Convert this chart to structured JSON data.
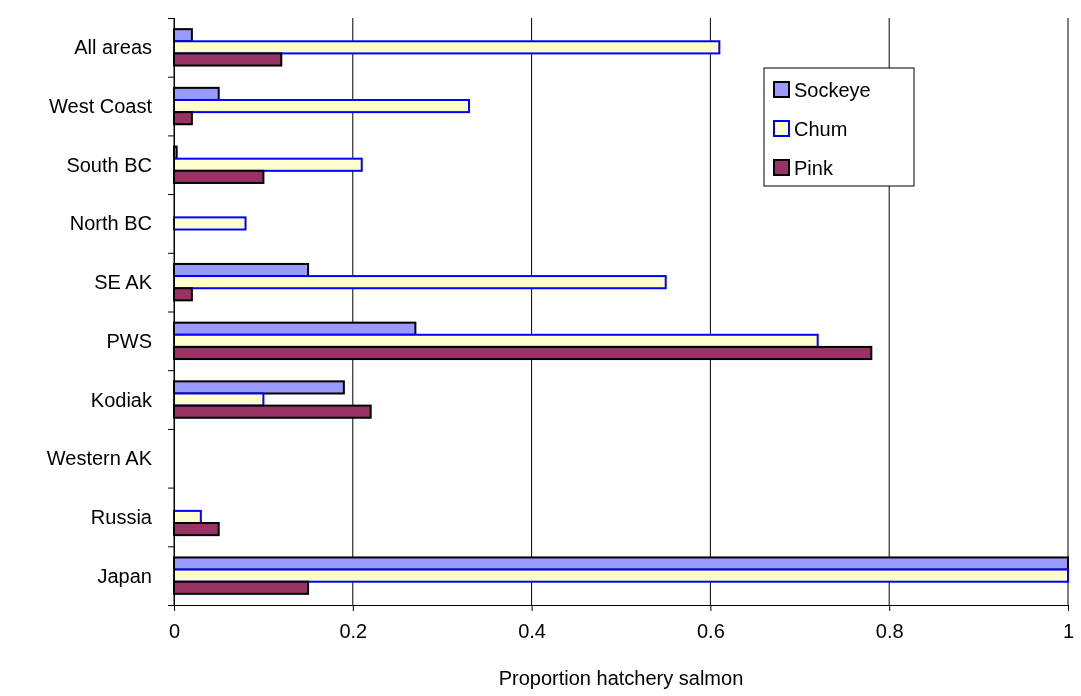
{
  "chart_data": {
    "type": "bar",
    "orientation": "horizontal",
    "xlabel": "Proportion hatchery salmon",
    "categories": [
      "All areas",
      "West Coast",
      "South BC",
      "North BC",
      "SE AK",
      "PWS",
      "Kodiak",
      "Western AK",
      "Russia",
      "Japan"
    ],
    "series": [
      {
        "name": "Sockeye",
        "color": "#9999ff",
        "values": [
          0.02,
          0.05,
          0.003,
          null,
          0.15,
          0.27,
          0.19,
          null,
          null,
          1
        ]
      },
      {
        "name": "Chum",
        "color": "#ffffcc",
        "values": [
          0.61,
          0.33,
          0.21,
          0.08,
          0.55,
          0.72,
          0.1,
          null,
          0.03,
          1
        ]
      },
      {
        "name": "Pink",
        "color": "#993366",
        "values": [
          0.12,
          0.02,
          0.1,
          null,
          0.02,
          0.78,
          0.22,
          null,
          0.05,
          0.15
        ]
      }
    ],
    "xlim": [
      0,
      1
    ],
    "xticks": [
      0,
      0.2,
      0.4,
      0.6,
      0.8,
      1
    ],
    "grid": "x",
    "legend": "top right"
  }
}
